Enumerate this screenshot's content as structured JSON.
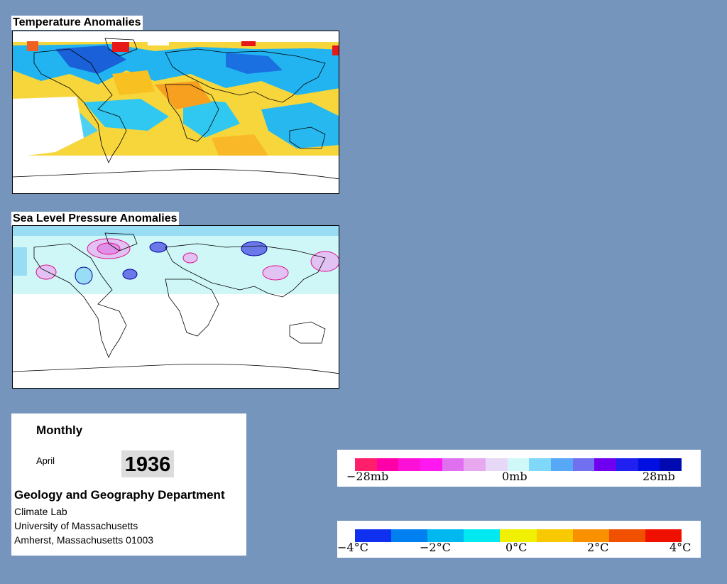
{
  "temperature_panel": {
    "title": "Temperature Anomalies"
  },
  "pressure_panel": {
    "title": "Sea Level Pressure Anomalies"
  },
  "info": {
    "frequency": "Monthly",
    "month": "April",
    "year": "1936",
    "department": "Geology and Geography Department",
    "lab": "Climate Lab",
    "university": "University of Massachusetts",
    "address": "Amherst, Massachusetts 01003"
  },
  "pressure_legend": {
    "labels": [
      "−28mb",
      "0mb",
      "28mb"
    ],
    "colors": [
      "#ff1f6b",
      "#ff00a8",
      "#ff10d6",
      "#ff18f0",
      "#e070f0",
      "#e8a8f0",
      "#e8d8f8",
      "#d0f8f8",
      "#80d8f8",
      "#58a8f8",
      "#7070f0",
      "#7000f0",
      "#2020f0",
      "#0010e0",
      "#000ab0"
    ]
  },
  "temperature_legend": {
    "labels": [
      "−4°C",
      "−2°C",
      "0°C",
      "2°C",
      "4°C"
    ],
    "colors": [
      "#1030f0",
      "#0080f0",
      "#00b8f0",
      "#00e8f0",
      "#f0f000",
      "#f8c800",
      "#f89000",
      "#f05000",
      "#f01000"
    ]
  }
}
